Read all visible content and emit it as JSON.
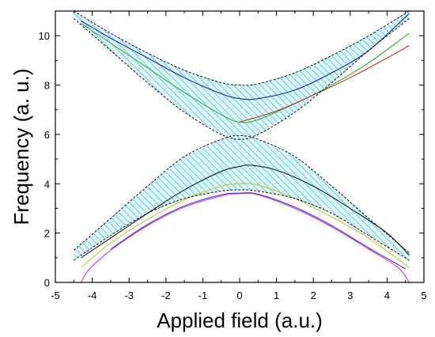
{
  "chart_data": {
    "type": "line",
    "title": "",
    "xlabel": "Applied field (a.u.)",
    "ylabel": "Frequency (a. u.)",
    "xlim": [
      -5,
      5
    ],
    "ylim": [
      0,
      11
    ],
    "x_ticks": [
      -5,
      -4,
      -3,
      -2,
      -1,
      0,
      1,
      2,
      3,
      4,
      5
    ],
    "x_tick_labels": [
      "-5",
      "-4",
      "-3",
      "-2",
      "-1",
      "0",
      "1",
      "2",
      "3",
      "4",
      "5"
    ],
    "y_ticks": [
      0,
      2,
      4,
      6,
      8,
      10
    ],
    "y_tick_labels": [
      "0",
      "2",
      "4",
      "6",
      "8",
      "10"
    ],
    "grid": false,
    "legend": "none",
    "series": [
      {
        "color": "#1c1cc8",
        "style": "solid",
        "x": [
          -4.3,
          -3.5,
          -2.5,
          -1.5,
          -0.5,
          0.0,
          0.5,
          1.5,
          2.5,
          3.5,
          4.6
        ],
        "y": [
          10.6,
          9.9,
          9.1,
          8.3,
          7.65,
          7.45,
          7.45,
          7.8,
          8.5,
          9.4,
          10.9
        ]
      },
      {
        "color": "#2fb82f",
        "style": "solid",
        "x": [
          -4.3,
          -3.5,
          -2.5,
          -1.5,
          -0.5,
          0.0,
          0.5,
          1.5,
          2.5,
          3.5,
          4.6
        ],
        "y": [
          10.5,
          9.7,
          8.7,
          7.7,
          6.8,
          6.5,
          6.6,
          7.25,
          8.0,
          8.9,
          10.1
        ]
      },
      {
        "color": "#d42a2a",
        "style": "solid",
        "x": [
          0.0,
          1.0,
          2.0,
          3.0,
          4.0,
          4.6
        ],
        "y": [
          6.5,
          6.95,
          7.6,
          8.3,
          9.1,
          9.6
        ]
      },
      {
        "color": "#1f1f1f",
        "style": "solid",
        "x": [
          -4.3,
          -3.5,
          -2.5,
          -1.5,
          -0.5,
          0.0,
          0.3,
          1.0,
          2.0,
          3.0,
          4.0,
          4.6
        ],
        "y": [
          1.0,
          1.8,
          2.8,
          3.75,
          4.5,
          4.7,
          4.75,
          4.55,
          3.9,
          3.0,
          2.0,
          1.1
        ]
      },
      {
        "color": "#c8c81e",
        "style": "solid",
        "x": [
          -4.3,
          -3.5,
          -2.5,
          -1.5,
          -0.5,
          0.0,
          0.5,
          1.5,
          2.5,
          3.5,
          4.6
        ],
        "y": [
          0.6,
          1.6,
          2.55,
          3.35,
          3.9,
          4.0,
          3.95,
          3.4,
          2.65,
          1.8,
          0.6
        ]
      },
      {
        "color": "#d23ad2",
        "style": "solid",
        "x": [
          -4.3,
          -4.1,
          -3.5,
          -2.5,
          -1.5,
          -0.5,
          0.0,
          0.5,
          1.5,
          2.5,
          3.5,
          4.3,
          4.6
        ],
        "y": [
          0.0,
          0.5,
          1.3,
          2.3,
          3.05,
          3.5,
          3.6,
          3.55,
          3.0,
          2.25,
          1.35,
          0.6,
          0.0
        ]
      },
      {
        "color": "#3a3aff",
        "style": "solid",
        "x": [
          -3.5,
          -2.5,
          -1.5,
          -0.5,
          0.0,
          0.5,
          1.5,
          2.5,
          3.5,
          4.5
        ],
        "y": [
          1.35,
          2.35,
          3.1,
          3.55,
          3.62,
          3.58,
          3.05,
          2.3,
          1.4,
          0.55
        ]
      },
      {
        "color": "#000000",
        "style": "dashed",
        "x": [
          -4.5,
          -3.5,
          -2.5,
          -1.5,
          -0.5,
          0.0,
          0.5,
          1.5,
          2.5,
          3.5,
          4.6
        ],
        "y": [
          11.0,
          10.1,
          9.3,
          8.6,
          8.1,
          8.0,
          8.05,
          8.5,
          9.2,
          10.0,
          11.0
        ]
      },
      {
        "color": "#000000",
        "style": "dashed",
        "x": [
          -4.5,
          -3.5,
          -2.5,
          -1.5,
          -0.5,
          0.0,
          0.5,
          1.5,
          2.5,
          3.5,
          4.6
        ],
        "y": [
          10.7,
          9.4,
          8.1,
          6.9,
          6.0,
          5.8,
          6.0,
          6.9,
          8.1,
          9.4,
          10.7
        ]
      },
      {
        "color": "#000000",
        "style": "dashed",
        "x": [
          -4.5,
          -3.5,
          -2.5,
          -1.5,
          -0.5,
          0.0,
          0.5,
          1.5,
          2.5,
          3.5,
          4.6
        ],
        "y": [
          1.3,
          2.6,
          3.9,
          5.1,
          5.8,
          5.95,
          5.8,
          5.1,
          3.9,
          2.6,
          1.2
        ]
      },
      {
        "color": "#000000",
        "style": "dashed",
        "x": [
          -4.5,
          -3.5,
          -2.5,
          -1.5,
          -0.5,
          0.0,
          0.5,
          1.5,
          2.5,
          3.5,
          4.6
        ],
        "y": [
          0.9,
          1.9,
          2.8,
          3.4,
          3.7,
          3.75,
          3.7,
          3.4,
          2.8,
          1.9,
          0.9
        ]
      }
    ],
    "bands": [
      {
        "color": "#7fd8e6",
        "fill": "hatched",
        "between_series": [
          7,
          8
        ]
      },
      {
        "color": "#7fd8e6",
        "fill": "hatched",
        "between_series": [
          9,
          10
        ]
      }
    ]
  }
}
